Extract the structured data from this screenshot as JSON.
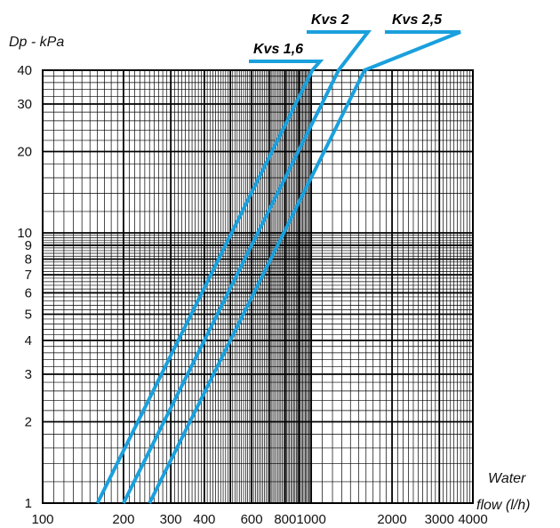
{
  "chart_data": {
    "type": "line",
    "title": "",
    "ylabel": "Dp - kPa",
    "xlabel_line1": "Water",
    "xlabel_line2": "flow (l/h)",
    "x_scale": "log",
    "y_scale": "log",
    "xlim": [
      100,
      4000
    ],
    "ylim": [
      1,
      40
    ],
    "grid": true,
    "x_ticks": [
      100,
      200,
      300,
      400,
      600,
      800,
      1000,
      2000,
      3000,
      4000
    ],
    "x_tick_labels": [
      "100",
      "200",
      "300",
      "400",
      "600",
      "800",
      "1000",
      "2000",
      "3000",
      "4000"
    ],
    "y_ticks": [
      1,
      2,
      3,
      4,
      5,
      6,
      7,
      8,
      9,
      10,
      20,
      30,
      40
    ],
    "y_tick_labels": [
      "1",
      "2",
      "3",
      "4",
      "5",
      "6",
      "7",
      "8",
      "9",
      "10",
      "20",
      "30",
      "40"
    ],
    "line_color": "#1aa0dc",
    "series": [
      {
        "name": "Kvs 1,6",
        "x": [
          160,
          640,
          1010
        ],
        "y": [
          1,
          16,
          40
        ]
      },
      {
        "name": "Kvs 2",
        "x": [
          200,
          800,
          1265
        ],
        "y": [
          1,
          16,
          40
        ]
      },
      {
        "name": "Kvs 2,5",
        "x": [
          250,
          1000,
          1580
        ],
        "y": [
          1,
          16,
          40
        ]
      }
    ]
  }
}
